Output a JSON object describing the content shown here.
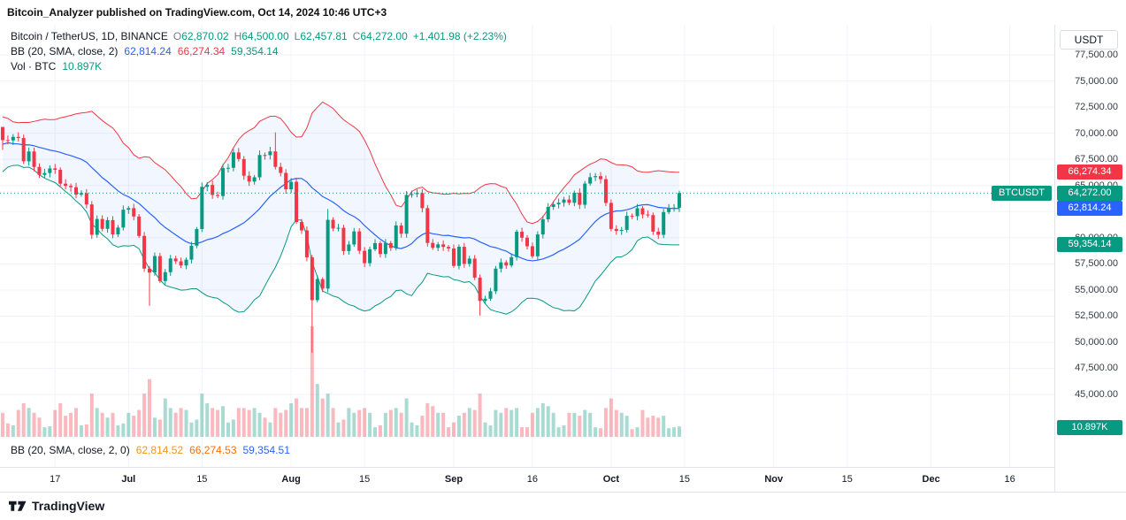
{
  "banner": {
    "text": "Bitcoin_Analyzer published on TradingView.com, Oct 14, 2024 10:46 UTC+3"
  },
  "legend": {
    "symbol": "Bitcoin / TetherUS, 1D, BINANCE",
    "ohlc": [
      {
        "label": "O",
        "value": "62,870.02"
      },
      {
        "label": "H",
        "value": "64,500.00"
      },
      {
        "label": "L",
        "value": "62,457.81"
      },
      {
        "label": "C",
        "value": "64,272.00"
      }
    ],
    "change": "+1,401.98 (+2.23%)",
    "bb_title": "BB (20, SMA, close, 2)",
    "bb_values": [
      {
        "value": "62,814.24",
        "color": "#2962FF"
      },
      {
        "value": "66,274.34",
        "color": "#F23645"
      },
      {
        "value": "59,354.14",
        "color": "#089981"
      }
    ],
    "vol_title": "Vol · BTC",
    "vol_value": "10.897K",
    "vol_value_color": "#089981"
  },
  "bottom_legend": {
    "title": "BB (20, SMA, close, 2, 0)",
    "values": [
      {
        "value": "62,814.52",
        "color": "#F7931A"
      },
      {
        "value": "66,274.53",
        "color": "#FF6D00"
      },
      {
        "value": "59,354.51",
        "color": "#2962FF"
      }
    ]
  },
  "symbol_label": "BTCUSDT",
  "price_axis": {
    "currency": "USDT",
    "ticks": [
      {
        "label": "77,500.00",
        "value": 77500
      },
      {
        "label": "75,000.00",
        "value": 75000
      },
      {
        "label": "72,500.00",
        "value": 72500
      },
      {
        "label": "70,000.00",
        "value": 70000
      },
      {
        "label": "67,500.00",
        "value": 67500
      },
      {
        "label": "65,000.00",
        "value": 65000
      },
      {
        "label": "62,500.00",
        "value": 62500
      },
      {
        "label": "60,000.00",
        "value": 60000
      },
      {
        "label": "57,500.00",
        "value": 57500
      },
      {
        "label": "55,000.00",
        "value": 55000
      },
      {
        "label": "52,500.00",
        "value": 52500
      },
      {
        "label": "50,000.00",
        "value": 50000
      },
      {
        "label": "47,500.00",
        "value": 47500
      },
      {
        "label": "45,000.00",
        "value": 45000
      }
    ],
    "badges": [
      {
        "label": "66,274.34",
        "color": "#F23645",
        "value": 66274.34
      },
      {
        "label": "64,272.00",
        "color": "#089981",
        "value": 64272
      },
      {
        "label": "62,814.24",
        "color": "#2962FF",
        "value": 62814.24
      },
      {
        "label": "59,354.14",
        "color": "#089981",
        "value": 59354.14
      },
      {
        "label": "10.897K",
        "color": "#089981",
        "y": 483
      }
    ]
  },
  "time_axis": {
    "labels": [
      {
        "text": "17",
        "index": 10
      },
      {
        "text": "Jul",
        "index": 24,
        "bold": true
      },
      {
        "text": "15",
        "index": 38
      },
      {
        "text": "Aug",
        "index": 55,
        "bold": true
      },
      {
        "text": "15",
        "index": 69
      },
      {
        "text": "Sep",
        "index": 86,
        "bold": true
      },
      {
        "text": "16",
        "index": 101
      },
      {
        "text": "Oct",
        "index": 116,
        "bold": true
      },
      {
        "text": "15",
        "index": 130
      },
      {
        "text": "Nov",
        "index": 147,
        "bold": true
      },
      {
        "text": "15",
        "index": 161
      },
      {
        "text": "Dec",
        "index": 177,
        "bold": true
      },
      {
        "text": "16",
        "index": 192
      }
    ]
  },
  "footer": {
    "logo_text": "TradingView"
  },
  "theme": {
    "up": "#089981",
    "down": "#F23645",
    "bb_mid": "#2962FF",
    "bb_upper": "#F23645",
    "bb_lower": "#089981",
    "bb_fill": "rgba(41,98,255,0.06)",
    "grid": "#F0F3FA",
    "ohlc_label_color": "#787B86"
  },
  "chart_data": {
    "type": "candlestick",
    "title": "Bitcoin / TetherUS, 1D, BINANCE",
    "symbol": "BTCUSDT",
    "exchange": "BINANCE",
    "interval": "1D",
    "ylabel": "USDT",
    "y_ticks": [
      45000,
      47500,
      50000,
      52500,
      55000,
      57500,
      60000,
      62500,
      65000,
      67500,
      70000,
      72500,
      75000,
      77500
    ],
    "visible_date_range": [
      "2024-06-07",
      "2024-12-16"
    ],
    "last_candle": {
      "open": 62870.02,
      "high": 64500.0,
      "low": 62457.81,
      "close": 64272.0,
      "change": 1401.98,
      "change_pct": 2.23
    },
    "last_price": 64272.0,
    "indicators": {
      "bollinger": {
        "length": 20,
        "ma_type": "SMA",
        "source": "close",
        "stdev": 2,
        "basis_last": 62814.24,
        "upper_last": 66274.34,
        "lower_last": 59354.14
      },
      "volume_last_kbtc": 10.897
    },
    "start_date": "2024-06-07",
    "end_date": "2024-10-14",
    "first_open": 70600,
    "pre_closes": [
      66270,
      71440,
      70150,
      69180,
      67970,
      68550,
      69280,
      68510,
      69420,
      68360,
      67640,
      68350,
      67540,
      67760,
      67750,
      68810,
      70550,
      71100,
      70800
    ],
    "closes": [
      69340,
      69310,
      69650,
      69540,
      67310,
      68250,
      66770,
      66010,
      66190,
      66630,
      66500,
      65170,
      64960,
      64830,
      64130,
      64260,
      63180,
      60280,
      61790,
      60850,
      61680,
      60320,
      60970,
      62680,
      62830,
      62030,
      60170,
      57040,
      56660,
      58240,
      55850,
      56700,
      58010,
      57740,
      57340,
      57900,
      59230,
      60830,
      64870,
      65050,
      64090,
      63990,
      66660,
      66690,
      68165,
      67530,
      65930,
      65370,
      65780,
      67910,
      67900,
      68260,
      66780,
      66200,
      64630,
      65350,
      61500,
      60700,
      58120,
      54020,
      56030,
      55130,
      61710,
      60880,
      60945,
      58720,
      59350,
      60600,
      58740,
      57560,
      58890,
      59480,
      58440,
      59490,
      59010,
      61170,
      60380,
      64090,
      64170,
      64270,
      62830,
      59500,
      59030,
      59360,
      59120,
      58970,
      57300,
      59130,
      57490,
      58000,
      56180,
      53950,
      54160,
      54870,
      57040,
      57640,
      57340,
      58130,
      60570,
      60000,
      59180,
      58220,
      60310,
      61760,
      62940,
      63200,
      63350,
      63650,
      63340,
      64300,
      63150,
      65180,
      65790,
      65890,
      65600,
      63330,
      60840,
      60650,
      60750,
      62090,
      62060,
      62820,
      62220,
      62160,
      60580,
      60280,
      62450,
      62860,
      62870,
      64272
    ],
    "volumes_kbtc": [
      25,
      14,
      12,
      28,
      35,
      30,
      25,
      20,
      10,
      11,
      28,
      35,
      22,
      25,
      30,
      12,
      13,
      45,
      30,
      25,
      20,
      25,
      12,
      14,
      25,
      22,
      28,
      45,
      60,
      20,
      18,
      40,
      30,
      25,
      30,
      28,
      15,
      18,
      45,
      35,
      30,
      28,
      32,
      15,
      18,
      30,
      30,
      28,
      30,
      25,
      20,
      15,
      30,
      25,
      28,
      35,
      40,
      30,
      30,
      115,
      55,
      40,
      45,
      30,
      15,
      18,
      30,
      25,
      28,
      30,
      25,
      10,
      12,
      25,
      28,
      30,
      25,
      40,
      15,
      12,
      22,
      35,
      32,
      25,
      25,
      10,
      15,
      22,
      25,
      30,
      28,
      45,
      15,
      12,
      28,
      25,
      30,
      28,
      30,
      10,
      10,
      25,
      30,
      35,
      32,
      25,
      10,
      12,
      25,
      25,
      22,
      28,
      25,
      10,
      9,
      30,
      40,
      28,
      25,
      22,
      8,
      10,
      28,
      20,
      22,
      20,
      22,
      9,
      10,
      10.897
    ],
    "wick_overrides": {
      "0": {
        "high": 70400,
        "low": 68400
      },
      "28": {
        "low": 53485
      },
      "44": {
        "high": 68500
      },
      "52": {
        "high": 70080
      },
      "59": {
        "high": 58350,
        "low": 49000
      },
      "62": {
        "high": 62750
      },
      "91": {
        "low": 52550
      },
      "129": {
        "high": 64500,
        "low": 62457.81
      }
    }
  }
}
